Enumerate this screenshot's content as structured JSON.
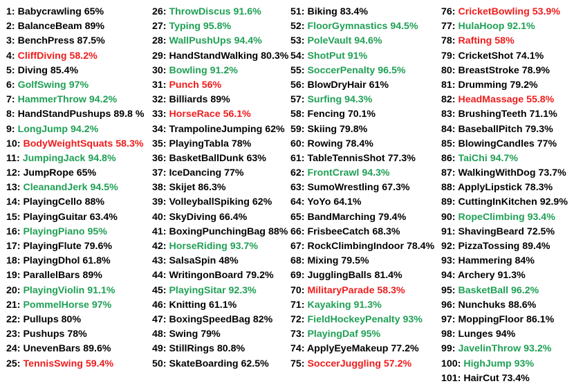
{
  "colors": {
    "high": "#1fa055",
    "low": "#ee1c1c",
    "normal": "#000000"
  },
  "columns": [
    [
      {
        "num": "1:",
        "name": "Babycrawling",
        "value": "65%",
        "status": "normal"
      },
      {
        "num": "2:",
        "name": "BalanceBeam",
        "value": "89%",
        "status": "normal"
      },
      {
        "num": "3:",
        "name": "BenchPress",
        "value": "87.5%",
        "status": "normal"
      },
      {
        "num": "4:",
        "name": "CliffDiving",
        "value": "58.2%",
        "status": "bad"
      },
      {
        "num": "5:",
        "name": "Diving",
        "value": "85.4%",
        "status": "normal"
      },
      {
        "num": "6:",
        "name": "GolfSwing",
        "value": "97%",
        "status": "good"
      },
      {
        "num": "7:",
        "name": "HammerThrow",
        "value": "94.2%",
        "status": "good"
      },
      {
        "num": "8:",
        "name": "HandStandPushups",
        "value": "89.8 %",
        "status": "normal"
      },
      {
        "num": "9:",
        "name": "LongJump",
        "value": "94.2%",
        "status": "good"
      },
      {
        "num": "10:",
        "name": "BodyWeightSquats",
        "value": "58.3%",
        "status": "bad"
      },
      {
        "num": "11:",
        "name": "JumpingJack",
        "value": "94.8%",
        "status": "good"
      },
      {
        "num": "12:",
        "name": "JumpRope",
        "value": "65%",
        "status": "normal"
      },
      {
        "num": "13:",
        "name": "CleanandJerk",
        "value": "94.5%",
        "status": "good"
      },
      {
        "num": "14:",
        "name": "PlayingCello",
        "value": "88%",
        "status": "normal"
      },
      {
        "num": "15:",
        "name": "PlayingGuitar",
        "value": "63.4%",
        "status": "normal"
      },
      {
        "num": "16:",
        "name": "PlayingPiano",
        "value": "95%",
        "status": "good"
      },
      {
        "num": "17:",
        "name": "PlayingFlute",
        "value": "79.6%",
        "status": "normal"
      },
      {
        "num": "18:",
        "name": "PlayingDhol",
        "value": "61.8%",
        "status": "normal"
      },
      {
        "num": "19:",
        "name": "ParallelBars",
        "value": "89%",
        "status": "normal"
      },
      {
        "num": "20:",
        "name": "PlayingViolin",
        "value": "91.1%",
        "status": "good"
      },
      {
        "num": "21:",
        "name": "PommelHorse",
        "value": "97%",
        "status": "good"
      },
      {
        "num": "22:",
        "name": "Pullups",
        "value": "80%",
        "status": "normal"
      },
      {
        "num": "23:",
        "name": "Pushups",
        "value": "78%",
        "status": "normal"
      },
      {
        "num": "24:",
        "name": "UnevenBars",
        "value": "89.6%",
        "status": "normal"
      },
      {
        "num": "25:",
        "name": "TennisSwing",
        "value": "59.4%",
        "status": "bad"
      }
    ],
    [
      {
        "num": "26:",
        "name": "ThrowDiscus",
        "value": "91.6%",
        "status": "good"
      },
      {
        "num": "27:",
        "name": "Typing",
        "value": "95.8%",
        "status": "good"
      },
      {
        "num": "28:",
        "name": "WallPushUps",
        "value": "94.4%",
        "status": "good"
      },
      {
        "num": "29:",
        "name": "HandStandWalking",
        "value": "80.3%",
        "status": "normal"
      },
      {
        "num": "30:",
        "name": "Bowling",
        "value": "91.2%",
        "status": "good"
      },
      {
        "num": "31:",
        "name": "Punch",
        "value": "56%",
        "status": "bad"
      },
      {
        "num": "32:",
        "name": "Billiards",
        "value": "89%",
        "status": "normal"
      },
      {
        "num": "33:",
        "name": "HorseRace",
        "value": "56.1%",
        "status": "bad"
      },
      {
        "num": "34:",
        "name": "TrampolineJumping",
        "value": "62%",
        "status": "normal"
      },
      {
        "num": "35:",
        "name": "PlayingTabla",
        "value": "78%",
        "status": "normal"
      },
      {
        "num": "36:",
        "name": "BasketBallDunk",
        "value": "63%",
        "status": "normal"
      },
      {
        "num": "37:",
        "name": "IceDancing",
        "value": "77%",
        "status": "normal"
      },
      {
        "num": "38:",
        "name": "Skijet",
        "value": "86.3%",
        "status": "normal"
      },
      {
        "num": "39:",
        "name": "VolleyballSpiking",
        "value": "62%",
        "status": "normal"
      },
      {
        "num": "40:",
        "name": "SkyDiving",
        "value": "66.4%",
        "status": "normal"
      },
      {
        "num": "41:",
        "name": "BoxingPunchingBag",
        "value": "88%",
        "status": "normal"
      },
      {
        "num": "42:",
        "name": "HorseRiding",
        "value": "93.7%",
        "status": "good"
      },
      {
        "num": "43:",
        "name": "SalsaSpin",
        "value": "48%",
        "status": "normal"
      },
      {
        "num": "44:",
        "name": "WritingonBoard",
        "value": "79.2%",
        "status": "normal"
      },
      {
        "num": "45:",
        "name": "PlayingSitar",
        "value": "92.3%",
        "status": "good"
      },
      {
        "num": "46:",
        "name": "Knitting",
        "value": "61.1%",
        "status": "normal"
      },
      {
        "num": "47:",
        "name": "BoxingSpeedBag",
        "value": "82%",
        "status": "normal"
      },
      {
        "num": "48:",
        "name": "Swing",
        "value": "79%",
        "status": "normal"
      },
      {
        "num": "49:",
        "name": "StillRings",
        "value": "80.8%",
        "status": "normal"
      },
      {
        "num": "50:",
        "name": "SkateBoarding",
        "value": "62.5%",
        "status": "normal"
      }
    ],
    [
      {
        "num": "51:",
        "name": "Biking",
        "value": "83.4%",
        "status": "normal"
      },
      {
        "num": "52:",
        "name": "FloorGymnastics",
        "value": "94.5%",
        "status": "good"
      },
      {
        "num": "53:",
        "name": "PoleVault",
        "value": "94.6%",
        "status": "good"
      },
      {
        "num": "54:",
        "name": "ShotPut",
        "value": "91%",
        "status": "good"
      },
      {
        "num": "55:",
        "name": "SoccerPenalty",
        "value": "96.5%",
        "status": "good"
      },
      {
        "num": "56:",
        "name": "BlowDryHair",
        "value": "61%",
        "status": "normal"
      },
      {
        "num": "57:",
        "name": "Surfing",
        "value": "94.3%",
        "status": "good"
      },
      {
        "num": "58:",
        "name": "Fencing",
        "value": "70.1%",
        "status": "normal"
      },
      {
        "num": "59:",
        "name": "Skiing",
        "value": "79.8%",
        "status": "normal"
      },
      {
        "num": "60:",
        "name": "Rowing",
        "value": "78.4%",
        "status": "normal"
      },
      {
        "num": "61:",
        "name": "TableTennisShot",
        "value": "77.3%",
        "status": "normal"
      },
      {
        "num": "62:",
        "name": "FrontCrawl",
        "value": "94.3%",
        "status": "good"
      },
      {
        "num": "63:",
        "name": "SumoWrestling",
        "value": "67.3%",
        "status": "normal"
      },
      {
        "num": "64:",
        "name": "YoYo",
        "value": "64.1%",
        "status": "normal"
      },
      {
        "num": "65:",
        "name": "BandMarching",
        "value": "79.4%",
        "status": "normal"
      },
      {
        "num": "66:",
        "name": "FrisbeeCatch",
        "value": "68.3%",
        "status": "normal"
      },
      {
        "num": "67:",
        "name": "RockClimbingIndoor",
        "value": "78.4%",
        "status": "normal"
      },
      {
        "num": "68:",
        "name": "Mixing",
        "value": "79.5%",
        "status": "normal"
      },
      {
        "num": "69:",
        "name": "JugglingBalls",
        "value": "81.4%",
        "status": "normal"
      },
      {
        "num": "70:",
        "name": "MilitaryParade",
        "value": "58.3%",
        "status": "bad"
      },
      {
        "num": "71:",
        "name": "Kayaking",
        "value": "91.3%",
        "status": "good"
      },
      {
        "num": "72:",
        "name": "FieldHockeyPenalty",
        "value": "93%",
        "status": "good"
      },
      {
        "num": "73:",
        "name": "PlayingDaf",
        "value": "95%",
        "status": "good"
      },
      {
        "num": "74:",
        "name": "ApplyEyeMakeup",
        "value": "77.2%",
        "status": "normal"
      },
      {
        "num": "75:",
        "name": "SoccerJuggling",
        "value": "57.2%",
        "status": "bad"
      }
    ],
    [
      {
        "num": "76:",
        "name": "CricketBowling",
        "value": "53.9%",
        "status": "bad"
      },
      {
        "num": "77:",
        "name": "HulaHoop",
        "value": "92.1%",
        "status": "good"
      },
      {
        "num": "78:",
        "name": "Rafting",
        "value": "58%",
        "status": "bad"
      },
      {
        "num": "79:",
        "name": "CricketShot",
        "value": "74.1%",
        "status": "normal"
      },
      {
        "num": "80:",
        "name": "BreastStroke",
        "value": "78.9%",
        "status": "normal"
      },
      {
        "num": "81:",
        "name": "Drumming",
        "value": "79.2%",
        "status": "normal"
      },
      {
        "num": "82:",
        "name": "HeadMassage",
        "value": "55.8%",
        "status": "bad"
      },
      {
        "num": "83:",
        "name": "BrushingTeeth",
        "value": "71.1%",
        "status": "normal"
      },
      {
        "num": "84:",
        "name": "BaseballPitch",
        "value": "79.3%",
        "status": "normal"
      },
      {
        "num": "85:",
        "name": "BlowingCandles",
        "value": "77%",
        "status": "normal"
      },
      {
        "num": "86:",
        "name": "TaiChi",
        "value": "94.7%",
        "status": "good"
      },
      {
        "num": "87:",
        "name": "WalkingWithDog",
        "value": "73.7%",
        "status": "normal"
      },
      {
        "num": "88:",
        "name": "ApplyLipstick",
        "value": "78.3%",
        "status": "normal"
      },
      {
        "num": "89:",
        "name": "CuttingInKitchen",
        "value": "92.9%",
        "status": "normal"
      },
      {
        "num": "90:",
        "name": "RopeClimbing",
        "value": "93.4%",
        "status": "good"
      },
      {
        "num": "91:",
        "name": "ShavingBeard",
        "value": "72.5%",
        "status": "normal"
      },
      {
        "num": "92:",
        "name": "PizzaTossing",
        "value": "89.4%",
        "status": "normal"
      },
      {
        "num": "93:",
        "name": "Hammering",
        "value": "84%",
        "status": "normal"
      },
      {
        "num": "94:",
        "name": "Archery",
        "value": "91.3%",
        "status": "normal"
      },
      {
        "num": "95:",
        "name": "BasketBall",
        "value": "96.2%",
        "status": "good"
      },
      {
        "num": "96:",
        "name": "Nunchuks",
        "value": "88.6%",
        "status": "normal"
      },
      {
        "num": "97:",
        "name": "MoppingFloor",
        "value": "86.1%",
        "status": "normal"
      },
      {
        "num": "98:",
        "name": "Lunges",
        "value": "94%",
        "status": "normal"
      },
      {
        "num": "99:",
        "name": "JavelinThrow",
        "value": "93.2%",
        "status": "good"
      },
      {
        "num": "100:",
        "name": "HighJump",
        "value": "93%",
        "status": "good"
      },
      {
        "num": "101:",
        "name": "HairCut",
        "value": "73.4%",
        "status": "normal"
      }
    ]
  ]
}
